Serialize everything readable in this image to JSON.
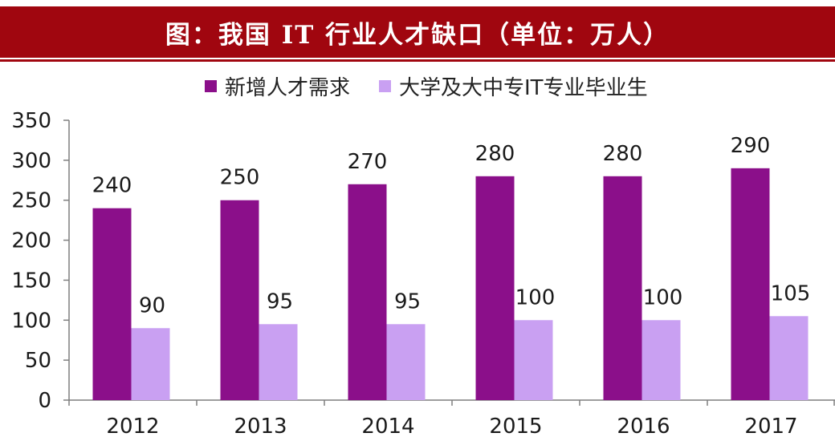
{
  "chart_data": {
    "type": "bar",
    "title": "图：我国 IT 行业人才缺口（单位：万人）",
    "categories": [
      "2012",
      "2013",
      "2014",
      "2015",
      "2016",
      "2017"
    ],
    "series": [
      {
        "name": "新增人才需求",
        "values": [
          240,
          250,
          270,
          280,
          280,
          290
        ],
        "color": "#8b0f8a"
      },
      {
        "name": "大学及大中专IT专业毕业生",
        "values": [
          90,
          95,
          95,
          100,
          100,
          105
        ],
        "color": "#c9a0f2"
      }
    ],
    "y_ticks": [
      0,
      50,
      100,
      150,
      200,
      250,
      300,
      350
    ],
    "ylim": [
      0,
      350
    ],
    "grid": false,
    "legend": "top"
  },
  "colors": {
    "title_bar": "#a0060f",
    "title_text": "#ffffff",
    "axis": "#7f7f7f",
    "label_text": "#1a1a1a"
  }
}
